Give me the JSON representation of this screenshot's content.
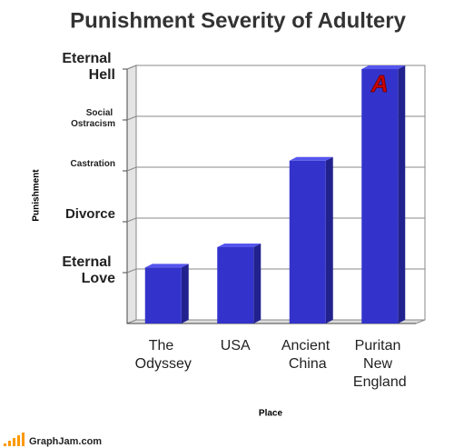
{
  "chart_data": {
    "type": "bar",
    "title": "Punishment Severity of Adultery",
    "x_label": "Place",
    "y_label": "Punishment",
    "categories": [
      "The Odyssey",
      "USA",
      "Ancient China",
      "Puritan New England"
    ],
    "values": [
      1.1,
      1.5,
      3.2,
      5.0
    ],
    "color": "#3333cc",
    "ylim": [
      0,
      5
    ],
    "yticks": [
      {
        "value": 1,
        "label": "Eternal Love"
      },
      {
        "value": 2,
        "label": "Divorce"
      },
      {
        "value": 3,
        "label": "Castration"
      },
      {
        "value": 4,
        "label": "Social Ostracism"
      },
      {
        "value": 5,
        "label": "Eternal Hell"
      }
    ],
    "grid": true,
    "annotation": "A"
  },
  "footer": "GraphJam.com"
}
